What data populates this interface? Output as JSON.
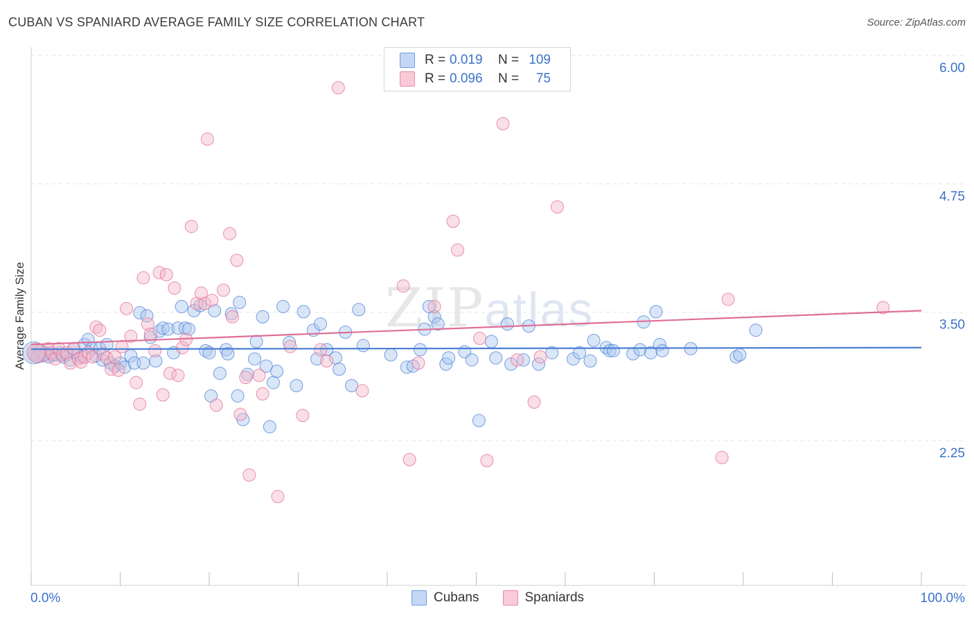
{
  "title": "CUBAN VS SPANIARD AVERAGE FAMILY SIZE CORRELATION CHART",
  "source": "Source: ZipAtlas.com",
  "watermark": {
    "zip": "ZIP",
    "atlas": "atlas"
  },
  "legend": {
    "r_label": "R =",
    "n_label": "N =",
    "rows": [
      {
        "r": "0.019",
        "n": "109",
        "color": "#aac8f0"
      },
      {
        "r": "0.096",
        "n": "75",
        "color": "#f5b7c8"
      }
    ]
  },
  "bottom_legend": {
    "cubans": "Cubans",
    "spaniards": "Spaniards"
  },
  "chart_data": {
    "type": "scatter",
    "title": "CUBAN VS SPANIARD AVERAGE FAMILY SIZE CORRELATION CHART",
    "xlabel": "",
    "ylabel": "Average Family Size",
    "xlim": [
      0,
      100
    ],
    "ylim": [
      1.0,
      6.2
    ],
    "x_tick_labels": [
      "0.0%",
      "100.0%"
    ],
    "y_ticks": [
      2.25,
      3.5,
      4.75,
      6.0
    ],
    "y_tick_labels": [
      "2.25",
      "3.50",
      "4.75",
      "6.00"
    ],
    "grid": true,
    "legend_position": "top-center",
    "series": [
      {
        "name": "Cubans",
        "color": "#4a7fd4",
        "fill": "#aac8f0",
        "trend": {
          "x": [
            0,
            100
          ],
          "y": [
            3.255,
            3.27
          ]
        },
        "points": [
          [
            0.4,
            3.2
          ],
          [
            0.8,
            3.21
          ],
          [
            1.2,
            3.19
          ],
          [
            1.6,
            3.22
          ],
          [
            2.0,
            3.18
          ],
          [
            2.4,
            3.2
          ],
          [
            2.8,
            3.2
          ],
          [
            3.2,
            3.22
          ],
          [
            3.6,
            3.18
          ],
          [
            4.0,
            3.2
          ],
          [
            4.4,
            3.15
          ],
          [
            4.8,
            3.26
          ],
          [
            5.2,
            3.2
          ],
          [
            5.6,
            3.18
          ],
          [
            6.0,
            3.3
          ],
          [
            6.4,
            3.35
          ],
          [
            6.8,
            3.26
          ],
          [
            7.3,
            3.19
          ],
          [
            7.7,
            3.26
          ],
          [
            8.0,
            3.15
          ],
          [
            8.5,
            3.3
          ],
          [
            8.9,
            3.12
          ],
          [
            9.4,
            3.09
          ],
          [
            10.0,
            3.12
          ],
          [
            10.5,
            3.08
          ],
          [
            11.2,
            3.19
          ],
          [
            11.6,
            3.12
          ],
          [
            12.2,
            3.61
          ],
          [
            12.6,
            3.12
          ],
          [
            13.0,
            3.58
          ],
          [
            13.4,
            3.37
          ],
          [
            14.0,
            3.14
          ],
          [
            14.4,
            3.43
          ],
          [
            14.8,
            3.46
          ],
          [
            15.4,
            3.45
          ],
          [
            16.0,
            3.22
          ],
          [
            16.5,
            3.46
          ],
          [
            16.9,
            3.67
          ],
          [
            17.3,
            3.46
          ],
          [
            17.7,
            3.45
          ],
          [
            18.3,
            3.63
          ],
          [
            19.0,
            3.68
          ],
          [
            19.6,
            3.24
          ],
          [
            20.0,
            3.22
          ],
          [
            20.2,
            2.8
          ],
          [
            20.6,
            3.63
          ],
          [
            21.2,
            3.02
          ],
          [
            21.9,
            3.25
          ],
          [
            22.1,
            3.21
          ],
          [
            22.5,
            3.6
          ],
          [
            23.2,
            2.8
          ],
          [
            23.4,
            3.71
          ],
          [
            23.8,
            2.57
          ],
          [
            24.3,
            3.01
          ],
          [
            25.1,
            3.16
          ],
          [
            25.3,
            3.33
          ],
          [
            26.0,
            3.57
          ],
          [
            26.4,
            3.09
          ],
          [
            26.8,
            2.5
          ],
          [
            27.2,
            2.93
          ],
          [
            27.6,
            3.04
          ],
          [
            28.3,
            3.67
          ],
          [
            29.0,
            3.32
          ],
          [
            29.8,
            2.9
          ],
          [
            30.6,
            3.62
          ],
          [
            31.7,
            3.44
          ],
          [
            32.1,
            3.16
          ],
          [
            32.5,
            3.5
          ],
          [
            33.2,
            3.25
          ],
          [
            34.2,
            3.17
          ],
          [
            34.6,
            3.06
          ],
          [
            35.3,
            3.42
          ],
          [
            36.0,
            2.9
          ],
          [
            36.8,
            3.64
          ],
          [
            37.3,
            3.29
          ],
          [
            40.4,
            3.2
          ],
          [
            42.2,
            3.08
          ],
          [
            42.9,
            3.09
          ],
          [
            43.7,
            3.25
          ],
          [
            44.2,
            3.45
          ],
          [
            44.7,
            3.67
          ],
          [
            45.3,
            3.57
          ],
          [
            45.7,
            3.5
          ],
          [
            46.6,
            3.11
          ],
          [
            46.9,
            3.17
          ],
          [
            48.7,
            3.23
          ],
          [
            49.5,
            3.15
          ],
          [
            50.3,
            2.56
          ],
          [
            51.7,
            3.33
          ],
          [
            52.2,
            3.17
          ],
          [
            53.5,
            3.5
          ],
          [
            53.9,
            3.11
          ],
          [
            55.3,
            3.15
          ],
          [
            55.9,
            3.48
          ],
          [
            57.0,
            3.11
          ],
          [
            58.5,
            3.22
          ],
          [
            60.9,
            3.16
          ],
          [
            61.6,
            3.22
          ],
          [
            62.8,
            3.14
          ],
          [
            63.2,
            3.34
          ],
          [
            64.6,
            3.27
          ],
          [
            65.0,
            3.24
          ],
          [
            65.4,
            3.24
          ],
          [
            67.6,
            3.21
          ],
          [
            68.4,
            3.25
          ],
          [
            68.8,
            3.52
          ],
          [
            69.6,
            3.22
          ],
          [
            70.2,
            3.62
          ],
          [
            70.6,
            3.3
          ],
          [
            70.9,
            3.24
          ],
          [
            74.1,
            3.26
          ],
          [
            79.2,
            3.18
          ],
          [
            79.6,
            3.2
          ],
          [
            81.4,
            3.44
          ]
        ]
      },
      {
        "name": "Spaniards",
        "color": "#e06e96",
        "fill": "#f5b7c8",
        "trend": {
          "x": [
            0,
            100
          ],
          "y": [
            3.3,
            3.63
          ]
        },
        "points": [
          [
            0.3,
            3.22
          ],
          [
            0.7,
            3.18
          ],
          [
            1.1,
            3.24
          ],
          [
            1.5,
            3.2
          ],
          [
            1.9,
            3.26
          ],
          [
            2.3,
            3.22
          ],
          [
            2.7,
            3.16
          ],
          [
            3.1,
            3.26
          ],
          [
            3.5,
            3.2
          ],
          [
            4.0,
            3.22
          ],
          [
            4.4,
            3.12
          ],
          [
            4.8,
            3.26
          ],
          [
            5.3,
            3.16
          ],
          [
            5.6,
            3.13
          ],
          [
            6.0,
            3.18
          ],
          [
            6.4,
            3.22
          ],
          [
            6.9,
            3.18
          ],
          [
            7.3,
            3.47
          ],
          [
            7.7,
            3.44
          ],
          [
            8.1,
            3.21
          ],
          [
            8.5,
            3.17
          ],
          [
            9.0,
            3.06
          ],
          [
            9.4,
            3.18
          ],
          [
            9.8,
            3.05
          ],
          [
            10.2,
            3.28
          ],
          [
            10.7,
            3.65
          ],
          [
            11.2,
            3.38
          ],
          [
            11.8,
            2.93
          ],
          [
            12.2,
            2.72
          ],
          [
            12.6,
            3.95
          ],
          [
            13.1,
            3.5
          ],
          [
            13.4,
            3.4
          ],
          [
            13.9,
            3.24
          ],
          [
            14.4,
            4.0
          ],
          [
            14.8,
            2.81
          ],
          [
            15.2,
            3.98
          ],
          [
            15.6,
            3.02
          ],
          [
            16.1,
            3.85
          ],
          [
            16.5,
            3.0
          ],
          [
            17.0,
            3.27
          ],
          [
            17.4,
            3.35
          ],
          [
            18.0,
            4.45
          ],
          [
            18.6,
            3.7
          ],
          [
            19.1,
            3.8
          ],
          [
            19.5,
            3.7
          ],
          [
            19.8,
            5.3
          ],
          [
            20.3,
            3.73
          ],
          [
            20.8,
            2.71
          ],
          [
            21.6,
            3.83
          ],
          [
            22.3,
            4.38
          ],
          [
            22.6,
            3.57
          ],
          [
            23.1,
            4.12
          ],
          [
            23.5,
            2.62
          ],
          [
            24.1,
            2.98
          ],
          [
            24.5,
            2.03
          ],
          [
            25.6,
            3.0
          ],
          [
            26.0,
            2.82
          ],
          [
            27.7,
            1.82
          ],
          [
            29.1,
            3.28
          ],
          [
            30.5,
            2.61
          ],
          [
            32.5,
            3.25
          ],
          [
            33.2,
            3.14
          ],
          [
            34.5,
            5.8
          ],
          [
            37.2,
            2.85
          ],
          [
            41.8,
            3.87
          ],
          [
            42.5,
            2.18
          ],
          [
            43.5,
            3.12
          ],
          [
            45.3,
            3.67
          ],
          [
            47.4,
            4.5
          ],
          [
            47.9,
            4.22
          ],
          [
            50.4,
            3.36
          ],
          [
            51.2,
            2.17
          ],
          [
            53.0,
            5.45
          ],
          [
            54.6,
            3.15
          ],
          [
            56.5,
            2.74
          ],
          [
            57.2,
            3.18
          ],
          [
            59.1,
            4.64
          ],
          [
            77.6,
            2.2
          ],
          [
            78.3,
            3.74
          ],
          [
            95.7,
            3.66
          ]
        ]
      }
    ]
  }
}
